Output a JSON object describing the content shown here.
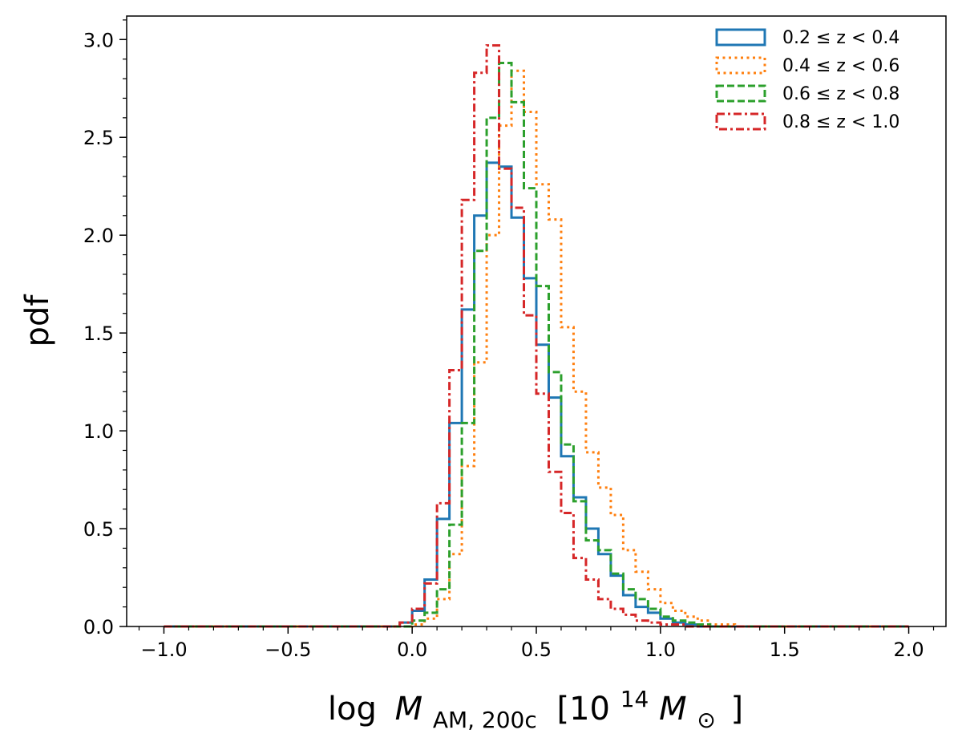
{
  "chart_data": {
    "type": "step-histogram",
    "xlabel_prefix": "log",
    "xlabel_symbol": "M",
    "xlabel_subscript": "AM, 200c",
    "xlabel_unit_open": "[10",
    "xlabel_unit_exp": "14",
    "xlabel_unit_symbol": "M",
    "xlabel_unit_sub": "⊙",
    "xlabel_unit_close": "]",
    "ylabel": "pdf",
    "xlim": [
      -1.15,
      2.15
    ],
    "ylim": [
      0,
      3.12
    ],
    "xticks": [
      -1.0,
      -0.5,
      0.0,
      0.5,
      1.0,
      1.5,
      2.0
    ],
    "xtick_labels": [
      "−1.0",
      "−0.5",
      "0.0",
      "0.5",
      "1.0",
      "1.5",
      "2.0"
    ],
    "yticks": [
      0.0,
      0.5,
      1.0,
      1.5,
      2.0,
      2.5,
      3.0
    ],
    "ytick_labels": [
      "0.0",
      "0.5",
      "1.0",
      "1.5",
      "2.0",
      "2.5",
      "3.0"
    ],
    "bin_start": -1.0,
    "bin_width": 0.05,
    "grid": false,
    "legend_position": "top-right",
    "series": [
      {
        "name": "0.2 ≤ z < 0.4",
        "color": "#1f77b4",
        "dash": "solid",
        "values": [
          0,
          0,
          0,
          0,
          0,
          0,
          0,
          0,
          0,
          0,
          0,
          0,
          0,
          0,
          0,
          0,
          0,
          0,
          0,
          0.02,
          0.08,
          0.24,
          0.55,
          1.04,
          1.62,
          2.1,
          2.37,
          2.35,
          2.09,
          1.78,
          1.44,
          1.17,
          0.87,
          0.66,
          0.5,
          0.37,
          0.26,
          0.16,
          0.1,
          0.07,
          0.04,
          0.02,
          0.01,
          0,
          0,
          0,
          0,
          0,
          0,
          0,
          0,
          0,
          0,
          0,
          0,
          0,
          0,
          0,
          0,
          0
        ]
      },
      {
        "name": "0.4 ≤ z < 0.6",
        "color": "#ff7f0e",
        "dash": "dotted",
        "values": [
          0,
          0,
          0,
          0,
          0,
          0,
          0,
          0,
          0,
          0,
          0,
          0,
          0,
          0,
          0,
          0,
          0,
          0,
          0,
          0,
          0.01,
          0.04,
          0.14,
          0.37,
          0.82,
          1.35,
          2.0,
          2.56,
          2.84,
          2.63,
          2.26,
          2.08,
          1.53,
          1.2,
          0.89,
          0.71,
          0.57,
          0.39,
          0.28,
          0.19,
          0.12,
          0.08,
          0.05,
          0.03,
          0.01,
          0.01,
          0,
          0,
          0,
          0,
          0,
          0,
          0,
          0,
          0,
          0,
          0,
          0,
          0,
          0
        ]
      },
      {
        "name": "0.6 ≤ z < 0.8",
        "color": "#2ca02c",
        "dash": "dashed",
        "values": [
          0,
          0,
          0,
          0,
          0,
          0,
          0,
          0,
          0,
          0,
          0,
          0,
          0,
          0,
          0,
          0,
          0,
          0,
          0,
          0,
          0.03,
          0.07,
          0.19,
          0.52,
          1.04,
          1.92,
          2.6,
          2.88,
          2.68,
          2.24,
          1.74,
          1.3,
          0.93,
          0.64,
          0.44,
          0.39,
          0.27,
          0.19,
          0.14,
          0.09,
          0.05,
          0.03,
          0.02,
          0.01,
          0,
          0,
          0,
          0,
          0,
          0,
          0,
          0,
          0,
          0,
          0,
          0,
          0,
          0,
          0,
          0
        ]
      },
      {
        "name": "0.8 ≤ z < 1.0",
        "color": "#d62728",
        "dash": "dashdot",
        "values": [
          0,
          0,
          0,
          0,
          0,
          0,
          0,
          0,
          0,
          0,
          0,
          0,
          0,
          0,
          0,
          0,
          0,
          0,
          0,
          0.02,
          0.09,
          0.22,
          0.63,
          1.31,
          2.18,
          2.83,
          2.97,
          2.34,
          2.14,
          1.59,
          1.19,
          0.79,
          0.58,
          0.35,
          0.24,
          0.14,
          0.09,
          0.06,
          0.03,
          0.02,
          0.01,
          0.01,
          0,
          0,
          0,
          0,
          0,
          0,
          0,
          0,
          0,
          0,
          0,
          0,
          0,
          0,
          0,
          0,
          0,
          0
        ]
      }
    ]
  }
}
